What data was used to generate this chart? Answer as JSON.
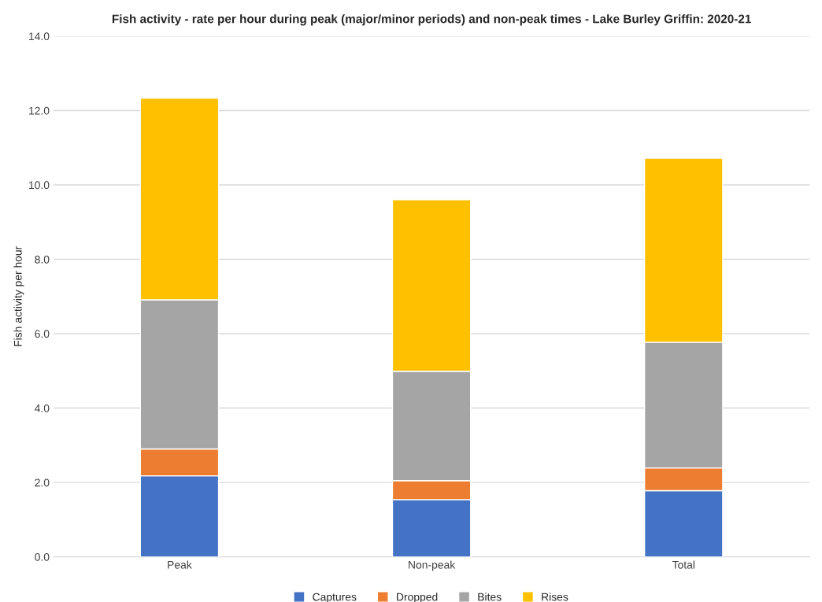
{
  "chart_data": {
    "type": "bar",
    "title": "Fish activity - rate per hour during peak (major/minor periods) and non-peak times - Lake Burley Griffin: 2020-21",
    "ylabel": "Fish activity per hour",
    "categories": [
      "Peak",
      "Non-peak",
      "Total"
    ],
    "stacked": true,
    "series": [
      {
        "name": "Captures",
        "color": "#4472c4",
        "values": [
          2.18,
          1.54,
          1.78
        ]
      },
      {
        "name": "Dropped",
        "color": "#ed7d31",
        "values": [
          0.72,
          0.51,
          0.61
        ]
      },
      {
        "name": "Bites",
        "color": "#a5a5a5",
        "values": [
          4.01,
          2.94,
          3.38
        ]
      },
      {
        "name": "Rises",
        "color": "#ffc000",
        "values": [
          5.42,
          4.61,
          4.95
        ]
      }
    ],
    "ylim": [
      0,
      14
    ],
    "yticks": [
      {
        "value": 0,
        "label": "0.0"
      },
      {
        "value": 2,
        "label": "2.0"
      },
      {
        "value": 4,
        "label": "4.0"
      },
      {
        "value": 6,
        "label": "6.0"
      },
      {
        "value": 8,
        "label": "8.0"
      },
      {
        "value": 10,
        "label": "10.0"
      },
      {
        "value": 12,
        "label": "12.0"
      },
      {
        "value": 14,
        "label": "14.0"
      }
    ],
    "grid": "y",
    "legend": "bottom"
  }
}
